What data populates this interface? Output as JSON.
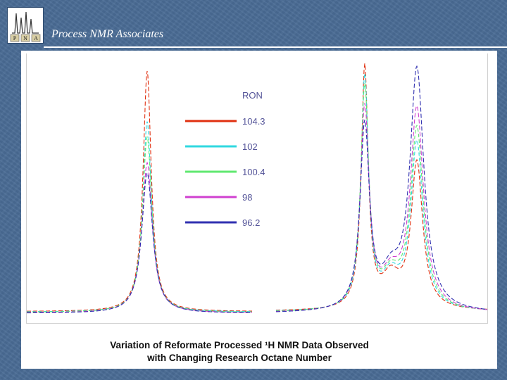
{
  "header": {
    "title": "Process NMR Associates",
    "logo_text": [
      "P",
      "N",
      "A"
    ]
  },
  "chart_data": {
    "type": "line",
    "title": "Variation of Reformate Processed ¹H NMR Data Observed\nwith Changing Research Octane Number",
    "xlabel": "",
    "ylabel": "",
    "legend_title": "RON",
    "legend_position": "top-center",
    "grid": false,
    "series": [
      {
        "name": "104.3",
        "color": "#e03010",
        "dash": "6,3",
        "left_peak": 0.96,
        "right_peak_a": 0.96,
        "right_peak_b": 0.58,
        "valley": 0.21
      },
      {
        "name": "102",
        "color": "#30d8e0",
        "dash": "5,3",
        "left_peak": 0.76,
        "right_peak_a": 0.92,
        "right_peak_b": 0.66,
        "valley": 0.2
      },
      {
        "name": "100.4",
        "color": "#60e870",
        "dash": "5,3",
        "left_peak": 0.7,
        "right_peak_a": 0.88,
        "right_peak_b": 0.72,
        "valley": 0.19
      },
      {
        "name": "98",
        "color": "#d040d0",
        "dash": "6,3",
        "left_peak": 0.6,
        "right_peak_a": 0.8,
        "right_peak_b": 0.8,
        "valley": 0.17
      },
      {
        "name": "96.2",
        "color": "#3030b0",
        "dash": "6,3",
        "left_peak": 0.56,
        "right_peak_a": 0.73,
        "right_peak_b": 0.96,
        "valley": 0.17
      }
    ]
  },
  "caption": {
    "line1": "Variation of Reformate Processed ¹H NMR Data Observed",
    "line2": "with Changing Research Octane Number"
  }
}
